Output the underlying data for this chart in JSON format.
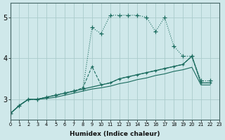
{
  "xlabel": "Humidex (Indice chaleur)",
  "bg_color": "#cfe8ea",
  "grid_color": "#aacccc",
  "line_color": "#1a6b5e",
  "xlim": [
    0,
    23
  ],
  "ylim": [
    2.5,
    5.35
  ],
  "yticks": [
    3,
    4,
    5
  ],
  "xticks": [
    0,
    1,
    2,
    3,
    4,
    5,
    6,
    7,
    8,
    9,
    10,
    11,
    12,
    13,
    14,
    15,
    16,
    17,
    18,
    19,
    20,
    21,
    22,
    23
  ],
  "s1_x": [
    0,
    1,
    2,
    3,
    4,
    5,
    6,
    7,
    8,
    9,
    10,
    11,
    12,
    13,
    14,
    15,
    16,
    17,
    18,
    19,
    20,
    21,
    22
  ],
  "s1_y": [
    2.65,
    2.85,
    3.0,
    3.0,
    3.05,
    3.1,
    3.15,
    3.2,
    3.25,
    4.75,
    4.6,
    5.05,
    5.05,
    5.05,
    5.05,
    5.0,
    4.65,
    5.0,
    4.3,
    4.05,
    4.05,
    3.45,
    3.45
  ],
  "s2_x": [
    0,
    1,
    2,
    3,
    4,
    5,
    6,
    7,
    8,
    9,
    10,
    11,
    12,
    13,
    14,
    15,
    16,
    17,
    18,
    19,
    20,
    21,
    22
  ],
  "s2_y": [
    2.65,
    2.85,
    3.0,
    3.0,
    3.05,
    3.1,
    3.15,
    3.2,
    3.28,
    3.8,
    3.35,
    3.4,
    3.5,
    3.55,
    3.6,
    3.65,
    3.7,
    3.75,
    3.8,
    3.85,
    4.05,
    3.4,
    3.4
  ],
  "s3_x": [
    0,
    1,
    2,
    3,
    4,
    5,
    6,
    7,
    8,
    9,
    10,
    11,
    12,
    13,
    14,
    15,
    16,
    17,
    18,
    19,
    20,
    21,
    22
  ],
  "s3_y": [
    2.65,
    2.85,
    3.0,
    3.0,
    3.05,
    3.1,
    3.15,
    3.2,
    3.25,
    3.3,
    3.35,
    3.4,
    3.5,
    3.55,
    3.6,
    3.65,
    3.7,
    3.75,
    3.8,
    3.85,
    4.05,
    3.4,
    3.4
  ],
  "s4_x": [
    0,
    1,
    2,
    3,
    4,
    5,
    6,
    7,
    8,
    9,
    10,
    11,
    12,
    13,
    14,
    15,
    16,
    17,
    18,
    19,
    20,
    21,
    22
  ],
  "s4_y": [
    2.65,
    2.85,
    3.0,
    3.0,
    3.02,
    3.05,
    3.1,
    3.15,
    3.2,
    3.25,
    3.28,
    3.32,
    3.38,
    3.42,
    3.48,
    3.52,
    3.58,
    3.62,
    3.68,
    3.72,
    3.78,
    3.35,
    3.35
  ]
}
